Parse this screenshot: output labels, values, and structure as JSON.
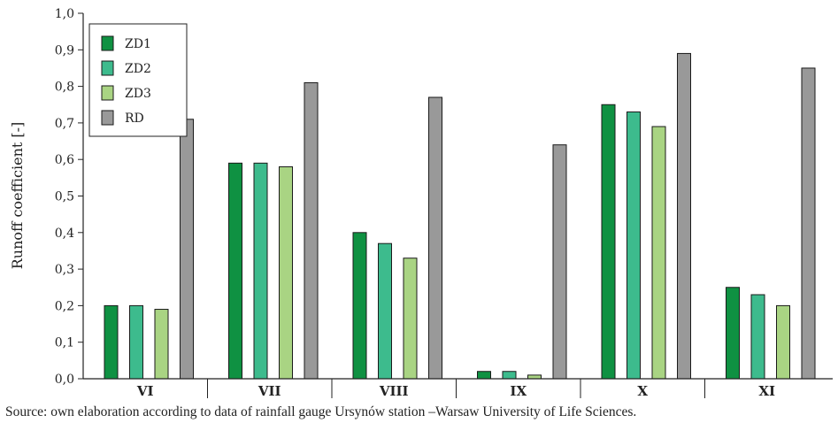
{
  "chart_data": {
    "type": "bar",
    "title": "",
    "xlabel": "",
    "ylabel": "Runoff coefficient [-]",
    "ylim": [
      0,
      1
    ],
    "yticks": [
      "0,0",
      "0,1",
      "0,2",
      "0,3",
      "0,4",
      "0,5",
      "0,6",
      "0,7",
      "0,8",
      "0,9",
      "1,0"
    ],
    "categories": [
      "VI",
      "VII",
      "VIII",
      "IX",
      "X",
      "XI"
    ],
    "series": [
      {
        "name": "ZD1",
        "color": "#0f9142",
        "values": [
          0.2,
          0.59,
          0.4,
          0.02,
          0.75,
          0.25
        ]
      },
      {
        "name": "ZD2",
        "color": "#3dbb8d",
        "values": [
          0.2,
          0.59,
          0.37,
          0.02,
          0.73,
          0.23
        ]
      },
      {
        "name": "ZD3",
        "color": "#a9d483",
        "values": [
          0.19,
          0.58,
          0.33,
          0.01,
          0.69,
          0.2
        ]
      },
      {
        "name": "RD",
        "color": "#999999",
        "values": [
          0.71,
          0.81,
          0.77,
          0.64,
          0.89,
          0.85
        ]
      }
    ],
    "grid": false,
    "legend_position": "top-left"
  },
  "source_note": "Source: own elaboration according to data of rainfall gauge Ursynów station –Warsaw University of Life Sciences."
}
